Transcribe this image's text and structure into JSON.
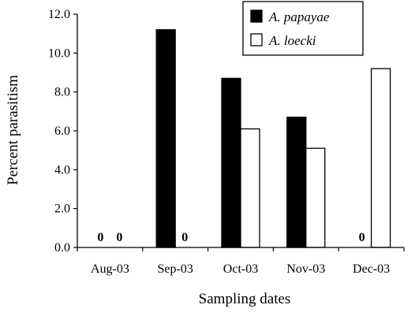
{
  "chart_data": {
    "type": "bar",
    "categories": [
      "Aug-03",
      "Sep-03",
      "Oct-03",
      "Nov-03",
      "Dec-03"
    ],
    "series": [
      {
        "name": "A. papayae",
        "values": [
          0,
          11.2,
          8.7,
          6.7,
          0
        ],
        "color": "#000000"
      },
      {
        "name": "A. loecki",
        "values": [
          0,
          0,
          6.1,
          5.1,
          9.2
        ],
        "color": "#ffffff"
      }
    ],
    "zero_labels": [
      {
        "category": "Aug-03",
        "series": "A. papayae",
        "text": "0"
      },
      {
        "category": "Aug-03",
        "series": "A. loecki",
        "text": "0"
      },
      {
        "category": "Sep-03",
        "series": "A. loecki",
        "text": "0"
      },
      {
        "category": "Dec-03",
        "series": "A. papayae",
        "text": "0"
      }
    ],
    "xlabel": "Sampling dates",
    "ylabel": "Percent parasitism",
    "ylim": [
      0,
      12
    ],
    "yticks": [
      "0.0",
      "2.0",
      "4.0",
      "6.0",
      "8.0",
      "10.0",
      "12.0"
    ],
    "grid": false,
    "legend_position": "top-right"
  }
}
